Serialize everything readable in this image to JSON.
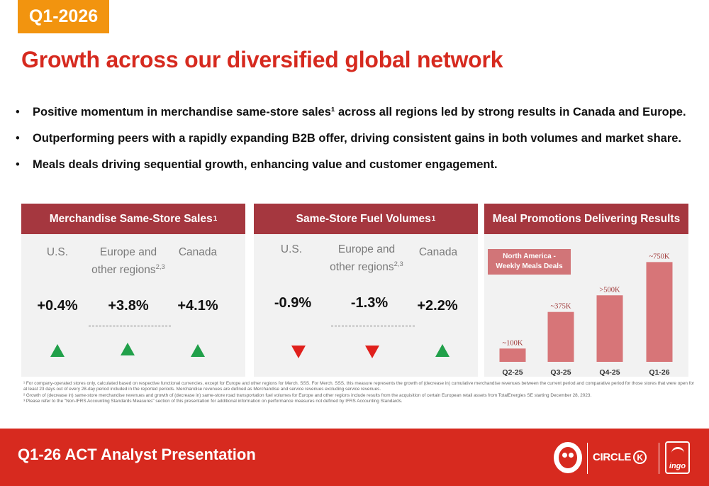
{
  "header": {
    "quarter_tag": "Q1-2026",
    "title": "Growth across our diversified global network"
  },
  "bullets": [
    {
      "text": "Positive momentum in merchandise same-store sales¹ across all regions led by strong results in Canada and Europe."
    },
    {
      "text": "Outperforming peers with a rapidly expanding B2B offer, driving consistent gains in both volumes and market share."
    },
    {
      "text": "Meals deals driving sequential growth, enhancing value and customer engagement."
    }
  ],
  "bullet_glyph": "•",
  "merch_panel": {
    "title": "Merchandise Same-Store Sales",
    "title_sup": "1",
    "columns": [
      {
        "label": "U.S.",
        "label_line2": "",
        "label_sup": "",
        "value": "+0.4%",
        "trend": "up",
        "trend_icon": "up-arrow-icon"
      },
      {
        "label": "Europe and",
        "label_line2": "other regions",
        "label_sup": "2,3",
        "value": "+3.8%",
        "trend": "up",
        "trend_icon": "up-arrow-icon"
      },
      {
        "label": "Canada",
        "label_line2": "",
        "label_sup": "",
        "value": "+4.1%",
        "trend": "up",
        "trend_icon": "up-arrow-icon"
      }
    ]
  },
  "fuel_panel": {
    "title": "Same-Store Fuel Volumes",
    "title_sup": "1",
    "columns": [
      {
        "label": "U.S.",
        "label_line2": "",
        "label_sup": "",
        "value": "-0.9%",
        "trend": "down",
        "trend_icon": "down-arrow-icon"
      },
      {
        "label": "Europe and",
        "label_line2": "other regions",
        "label_sup": "2,3",
        "value": "-1.3%",
        "trend": "down",
        "trend_icon": "down-arrow-icon"
      },
      {
        "label": "Canada",
        "label_line2": "",
        "label_sup": "",
        "value": "+2.2%",
        "trend": "up",
        "trend_icon": "up-arrow-icon"
      }
    ]
  },
  "meal_panel": {
    "title": "Meal Promotions Delivering Results",
    "legend_line1": "North America -",
    "legend_line2": "Weekly Meals Deals"
  },
  "chart_data": {
    "type": "bar",
    "title": "",
    "xlabel": "",
    "ylabel": "",
    "categories": [
      "Q2-25",
      "Q3-25",
      "Q4-25",
      "Q1-26"
    ],
    "values": [
      100,
      375,
      500,
      750
    ],
    "value_units": "thousands",
    "data_labels": [
      "~100K",
      "~375K",
      ">500K",
      "~750K"
    ],
    "ylim": [
      0,
      800
    ],
    "grid": false,
    "bar_color": "#d77578"
  },
  "footnotes": [
    "¹ For company-operated stores only, calculated based on respective functional currencies, except for Europe and other regions for Merch. SSS. For Merch. SSS, this measure represents the growth of (decrease in) cumulative merchandise revenues between the current period and comparative period for those stores that were open for at least 23 days out of every 28-day period included in the reported periods. Merchandise revenues are defined as Merchandise and service revenues excluding service revenues.",
    "² Growth of (decrease in) same-store merchandise revenues and growth of (decrease in) same-store road transportation fuel volumes for Europe and other regions include results from the acquisition of certain European retail assets from TotalEnergies SE starting December 28, 2023.",
    "³ Please refer to the \"Non-IFRS Accounting Standards Measures\" section of this presentation for additional information on performance measures not defined by IFRS Accounting Standards."
  ],
  "footer": {
    "title": "Q1-26 ACT Analyst Presentation",
    "brand_circlek": "CIRCLE",
    "brand_circlek_mark": "K",
    "brand_ingo": "ingo"
  },
  "colors": {
    "accent_red": "#d62a1f",
    "panel_header": "#a5373f",
    "quarter_tag": "#f2940f",
    "up_arrow": "#21a04a",
    "down_arrow": "#e0201c",
    "panel_bg": "#f2f2f2"
  }
}
